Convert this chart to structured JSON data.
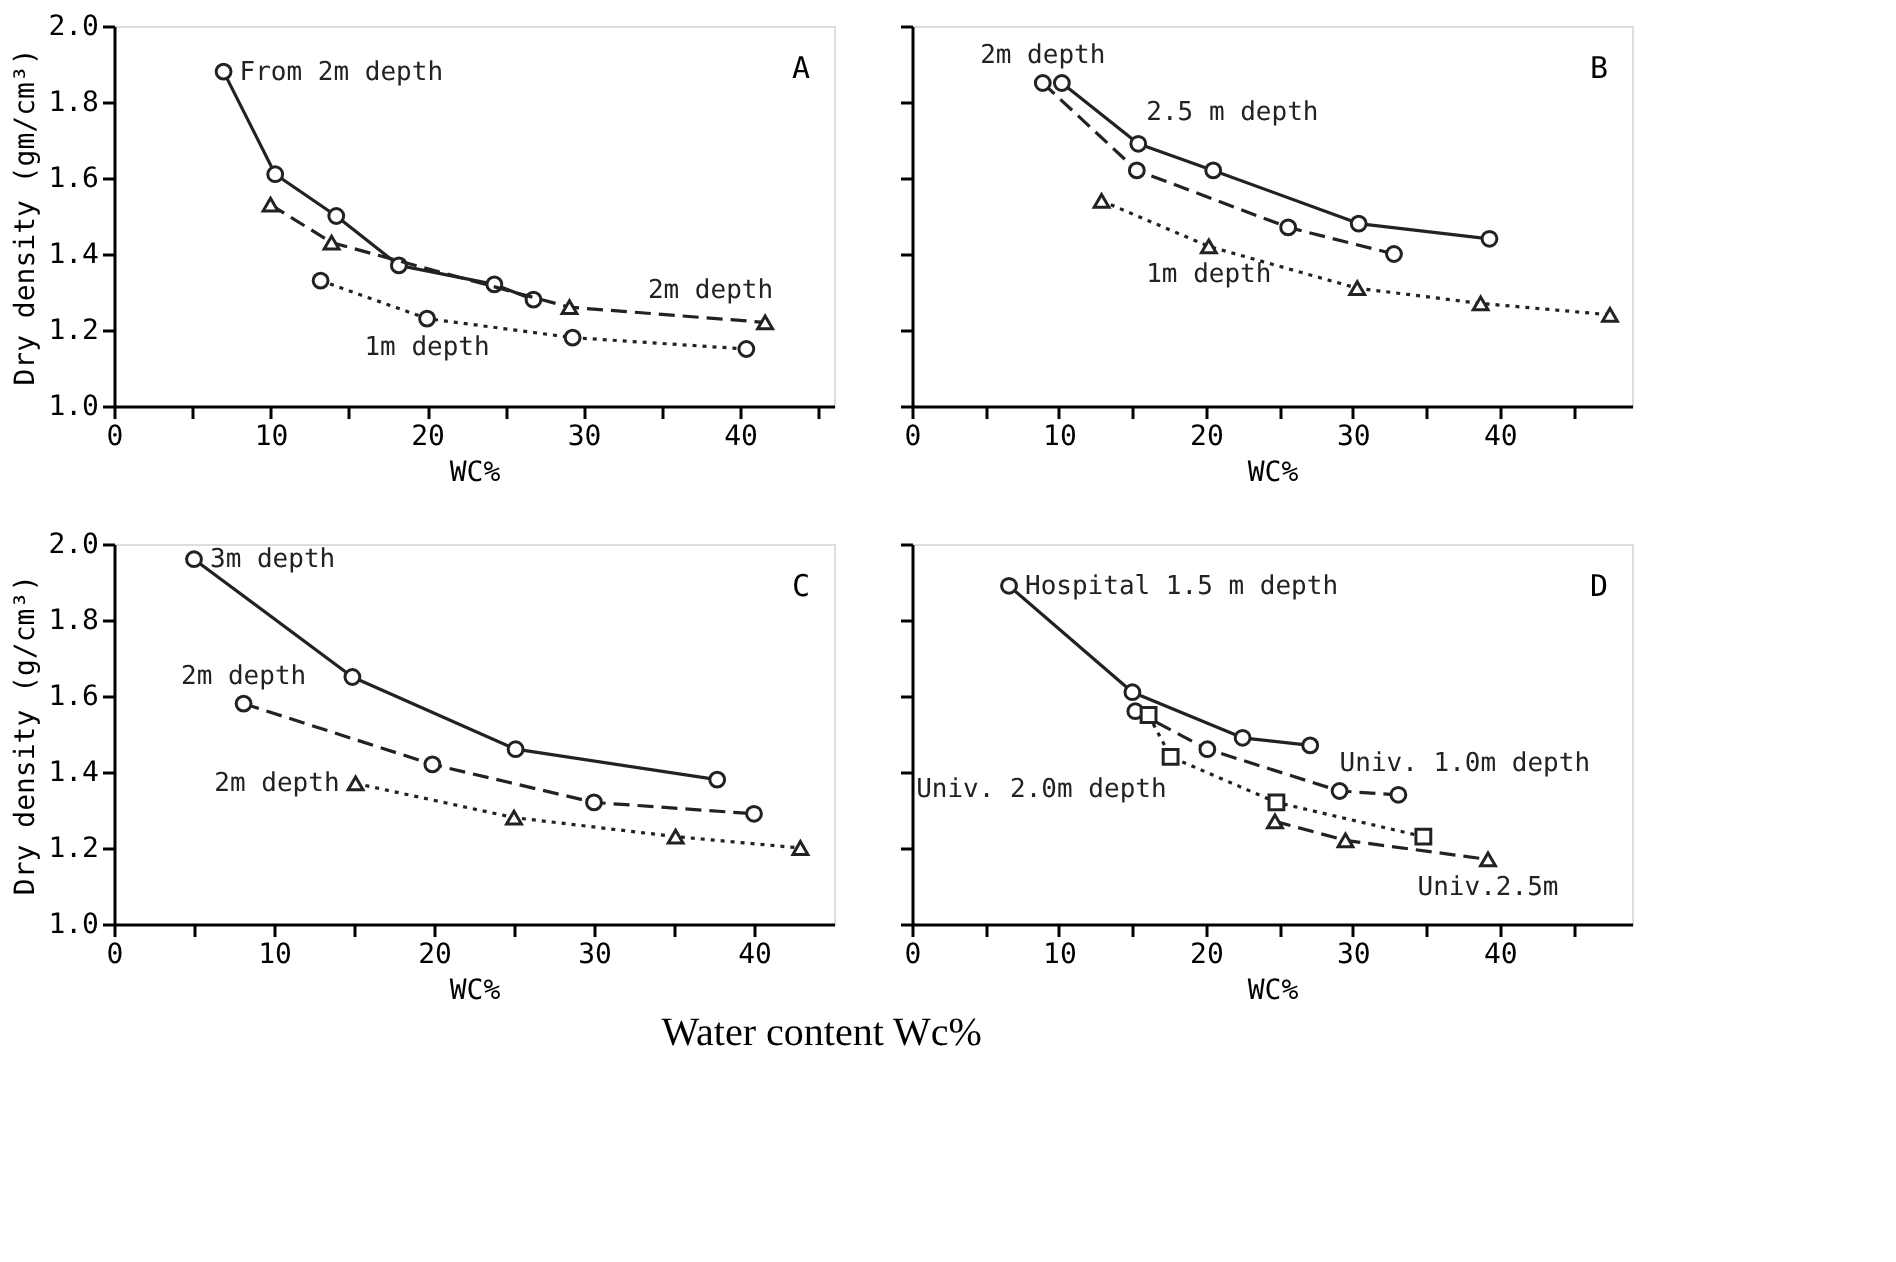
{
  "chart_data": [
    {
      "type": "line",
      "ylabel": "Dry density (gm/cm³)",
      "xlabel": "WC%",
      "xlim": [
        0,
        46
      ],
      "ylim": [
        1.0,
        2.0
      ],
      "xticks": [
        0,
        {
          "value": 5,
          "label": null
        },
        10,
        {
          "value": 15,
          "label": null
        },
        20,
        {
          "value": 25,
          "label": null
        },
        30,
        {
          "value": 35,
          "label": null
        },
        40,
        {
          "value": 45,
          "label": null
        }
      ],
      "yticks": [
        {
          "value": 1.0,
          "label": "1.0"
        },
        1.2,
        1.4,
        1.6,
        1.8,
        {
          "value": 2.0,
          "label": "2.0"
        }
      ],
      "grid": false,
      "annotations": [
        "A"
      ],
      "series": [
        {
          "name": "From 2m depth",
          "color": "#222222",
          "marker": "circle",
          "line_style": "solid",
          "x": [
            7.0,
            10.3,
            14.2,
            18.2,
            24.3,
            26.8
          ],
          "values": [
            1.88,
            1.61,
            1.5,
            1.37,
            1.32,
            1.28
          ]
        },
        {
          "name": "2m depth",
          "color": "#222222",
          "marker": "triangle",
          "line_style": "dashed",
          "x": [
            10.0,
            13.9,
            29.1,
            41.6
          ],
          "values": [
            1.53,
            1.43,
            1.26,
            1.22
          ]
        },
        {
          "name": "1m depth",
          "color": "#222222",
          "marker": "circle",
          "line_style": "dotted",
          "x": [
            13.2,
            20.0,
            29.3,
            40.4
          ],
          "values": [
            1.33,
            1.23,
            1.18,
            1.15
          ]
        }
      ]
    },
    {
      "type": "line",
      "xlabel": "WC%",
      "xlim": [
        0,
        49
      ],
      "ylim": [
        1.0,
        2.0
      ],
      "tick_labels": "x",
      "xticks": [
        0,
        {
          "value": 5,
          "label": null
        },
        10,
        {
          "value": 15,
          "label": null
        },
        20,
        {
          "value": 25,
          "label": null
        },
        30,
        {
          "value": 35,
          "label": null
        },
        40,
        {
          "value": 45,
          "label": null
        }
      ],
      "yticks": [
        {
          "value": 1.0,
          "label": null
        },
        {
          "value": 1.2,
          "label": null
        },
        {
          "value": 1.4,
          "label": null
        },
        {
          "value": 1.6,
          "label": null
        },
        {
          "value": 1.8,
          "label": null
        },
        {
          "value": 2.0,
          "label": null
        }
      ],
      "grid": false,
      "annotations": [
        "B"
      ],
      "series": [
        {
          "name": "2.5 m depth",
          "color": "#222222",
          "marker": "circle",
          "line_style": "solid",
          "x": [
            10.2,
            15.4,
            20.5,
            30.4,
            39.3
          ],
          "values": [
            1.85,
            1.69,
            1.62,
            1.48,
            1.44
          ]
        },
        {
          "name": "2m depth",
          "color": "#222222",
          "marker": "circle",
          "line_style": "dashed",
          "x": [
            8.9,
            15.3,
            25.6,
            32.8
          ],
          "values": [
            1.85,
            1.62,
            1.47,
            1.4
          ]
        },
        {
          "name": "1m depth",
          "color": "#222222",
          "marker": "triangle",
          "line_style": "dotted",
          "x": [
            12.9,
            20.2,
            30.3,
            38.7,
            47.5
          ],
          "values": [
            1.54,
            1.42,
            1.31,
            1.27,
            1.24
          ]
        }
      ]
    },
    {
      "type": "line",
      "ylabel": "Dry density (g/cm³)",
      "xlabel": "WC%",
      "xlim": [
        0,
        45
      ],
      "ylim": [
        1.0,
        2.0
      ],
      "xticks": [
        0,
        {
          "value": 5,
          "label": null
        },
        10,
        {
          "value": 15,
          "label": null
        },
        20,
        {
          "value": 25,
          "label": null
        },
        30,
        {
          "value": 35,
          "label": null
        },
        40
      ],
      "yticks": [
        {
          "value": 1.0,
          "label": "1.0"
        },
        1.2,
        1.4,
        1.6,
        1.8,
        {
          "value": 2.0,
          "label": "2.0"
        }
      ],
      "grid": false,
      "annotations": [
        "C"
      ],
      "series": [
        {
          "name": "3m depth",
          "color": "#222222",
          "marker": "circle",
          "line_style": "solid",
          "x": [
            5.0,
            14.9,
            25.1,
            37.7
          ],
          "values": [
            1.96,
            1.65,
            1.46,
            1.38
          ]
        },
        {
          "name": "2m depth",
          "color": "#222222",
          "marker": "circle",
          "line_style": "dashed",
          "x": [
            8.1,
            19.9,
            30.0,
            40.0
          ],
          "values": [
            1.58,
            1.42,
            1.32,
            1.29
          ]
        },
        {
          "name": "2m depth",
          "color": "#222222",
          "marker": "triangle",
          "line_style": "dotted",
          "x": [
            15.1,
            25.0,
            35.1,
            42.9
          ],
          "values": [
            1.37,
            1.28,
            1.23,
            1.2
          ]
        }
      ]
    },
    {
      "type": "line",
      "xlabel": "WC%",
      "xlim": [
        0,
        49
      ],
      "ylim": [
        1.0,
        2.0
      ],
      "tick_labels": "x",
      "xticks": [
        0,
        {
          "value": 5,
          "label": null
        },
        10,
        {
          "value": 15,
          "label": null
        },
        20,
        {
          "value": 25,
          "label": null
        },
        30,
        {
          "value": 35,
          "label": null
        },
        40,
        {
          "value": 45,
          "label": null
        }
      ],
      "yticks": [
        {
          "value": 1.0,
          "label": null
        },
        {
          "value": 1.2,
          "label": null
        },
        {
          "value": 1.4,
          "label": null
        },
        {
          "value": 1.6,
          "label": null
        },
        {
          "value": 1.8,
          "label": null
        },
        {
          "value": 2.0,
          "label": null
        }
      ],
      "grid": false,
      "annotations": [
        "D",
        "Water content Wc%"
      ],
      "series": [
        {
          "name": "Hospital 1.5 m depth",
          "color": "#222222",
          "marker": "circle",
          "line_style": "solid",
          "x": [
            6.6,
            15.0,
            22.5,
            27.1
          ],
          "values": [
            1.89,
            1.61,
            1.49,
            1.47
          ]
        },
        {
          "name": "Univ. 1.0m depth",
          "color": "#222222",
          "marker": "circle",
          "line_style": "dashed",
          "x": [
            15.2,
            20.1,
            29.1,
            33.1
          ],
          "values": [
            1.56,
            1.46,
            1.35,
            1.34
          ]
        },
        {
          "name": "Univ. 2.0m depth",
          "color": "#222222",
          "marker": "square",
          "line_style": "dotted",
          "x": [
            16.1,
            17.6,
            24.8,
            34.8
          ],
          "values": [
            1.55,
            1.44,
            1.32,
            1.23
          ]
        },
        {
          "name": "Univ.2.5m",
          "color": "#222222",
          "marker": "triangle",
          "line_style": "dashed",
          "x": [
            24.7,
            29.5,
            39.2
          ],
          "values": [
            1.27,
            1.22,
            1.17
          ]
        }
      ]
    }
  ]
}
